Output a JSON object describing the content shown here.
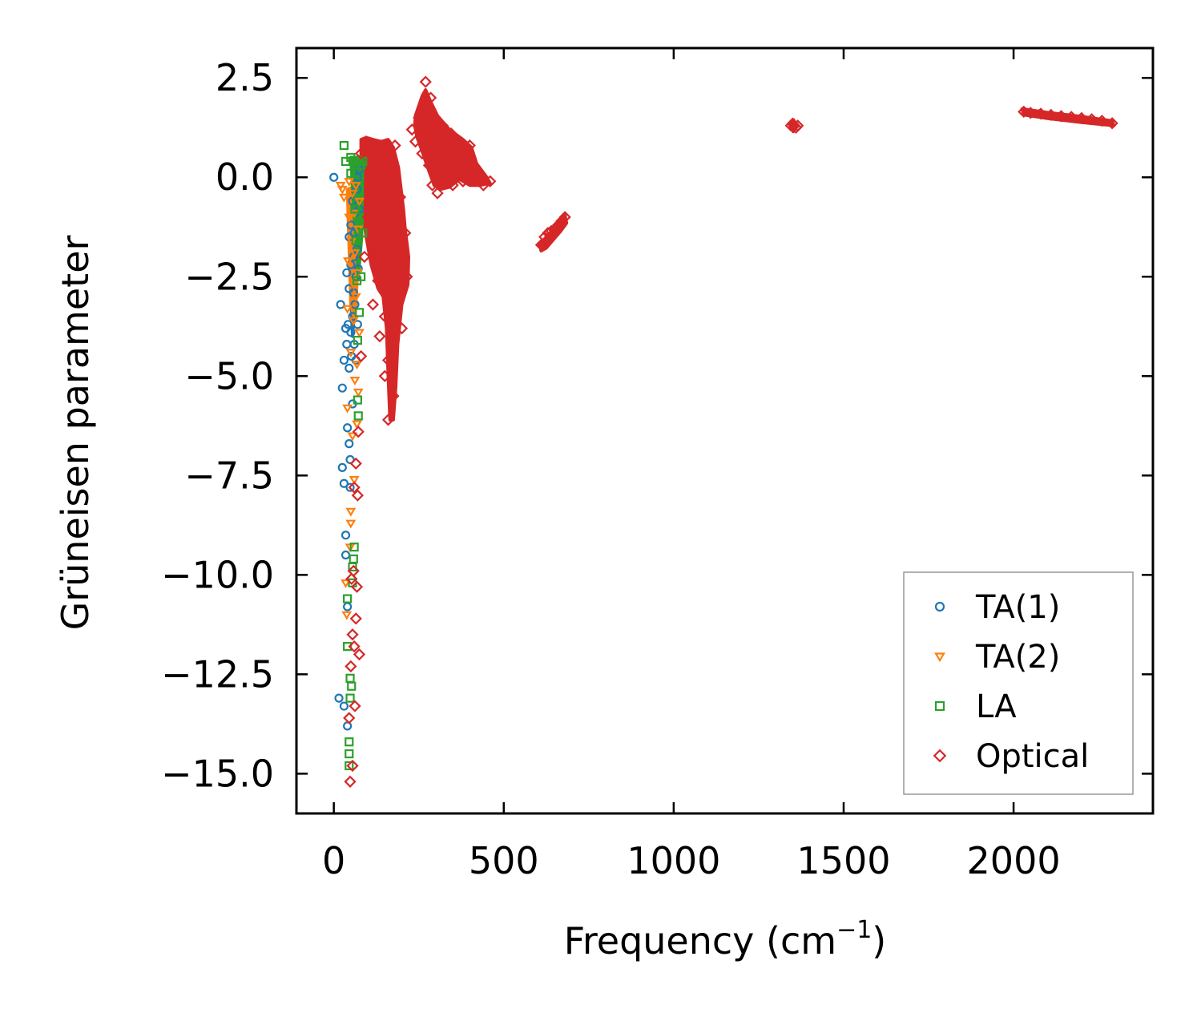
{
  "chart_data": {
    "type": "scatter",
    "title": "",
    "xlabel": "Frequency (cm",
    "xlabel_sup": "−1",
    "xlabel_end": ")",
    "ylabel": "Grüneisen parameter",
    "xlim": [
      -110,
      2410
    ],
    "ylim": [
      -16.0,
      3.25
    ],
    "x_ticks": [
      0,
      500,
      1000,
      1500,
      2000
    ],
    "x_tick_labels": [
      "0",
      "500",
      "1000",
      "1500",
      "2000"
    ],
    "y_ticks": [
      2.5,
      0.0,
      -2.5,
      -5.0,
      -7.5,
      -10.0,
      -12.5,
      -15.0
    ],
    "y_tick_labels": [
      "2.5",
      "0.0",
      "−2.5",
      "−5.0",
      "−7.5",
      "−10.0",
      "−12.5",
      "−15.0"
    ],
    "grid": false,
    "legend_position": "bottom-right",
    "series": [
      {
        "name": "TA(1)",
        "marker": "circle",
        "color": "#1f77b4",
        "points": [
          [
            0,
            0.0
          ],
          [
            15,
            -13.1
          ],
          [
            20,
            -3.2
          ],
          [
            25,
            -5.3
          ],
          [
            25,
            -7.3
          ],
          [
            30,
            -4.6
          ],
          [
            30,
            -7.7
          ],
          [
            30,
            -13.3
          ],
          [
            35,
            -9.0
          ],
          [
            35,
            -3.8
          ],
          [
            35,
            -9.5
          ],
          [
            38,
            -2.4
          ],
          [
            38,
            -4.2
          ],
          [
            40,
            -10.8
          ],
          [
            40,
            -13.8
          ],
          [
            40,
            -6.3
          ],
          [
            42,
            -3.7
          ],
          [
            45,
            -1.5
          ],
          [
            45,
            -2.8
          ],
          [
            45,
            -4.8
          ],
          [
            45,
            -6.7
          ],
          [
            48,
            -7.1
          ],
          [
            48,
            -7.8
          ],
          [
            50,
            -3.9
          ],
          [
            50,
            -1.2
          ],
          [
            50,
            -2.2
          ],
          [
            52,
            -4.5
          ],
          [
            55,
            -5.7
          ],
          [
            55,
            -3.5
          ],
          [
            55,
            -0.6
          ],
          [
            58,
            -2.9
          ],
          [
            58,
            -2.0
          ],
          [
            60,
            -4.2
          ],
          [
            60,
            -1.4
          ],
          [
            62,
            -3.2
          ],
          [
            62,
            -0.9
          ],
          [
            65,
            -2.5
          ],
          [
            65,
            -4.6
          ],
          [
            68,
            -1.8
          ],
          [
            68,
            -0.3
          ],
          [
            70,
            -3.7
          ],
          [
            70,
            0.0
          ],
          [
            72,
            -2.3
          ],
          [
            75,
            -0.8
          ],
          [
            75,
            0.2
          ]
        ]
      },
      {
        "name": "TA(2)",
        "marker": "triangle-down",
        "color": "#ff7f0e",
        "points": [
          [
            20,
            -0.2
          ],
          [
            25,
            -0.3
          ],
          [
            30,
            -0.5
          ],
          [
            35,
            -10.2
          ],
          [
            38,
            -11.0
          ],
          [
            40,
            -3.3
          ],
          [
            40,
            -5.8
          ],
          [
            42,
            -2.1
          ],
          [
            45,
            -0.1
          ],
          [
            45,
            -1.0
          ],
          [
            48,
            -9.3
          ],
          [
            50,
            -8.4
          ],
          [
            50,
            -8.7
          ],
          [
            50,
            -4.4
          ],
          [
            52,
            -1.6
          ],
          [
            55,
            -0.4
          ],
          [
            55,
            -6.5
          ],
          [
            58,
            -2.7
          ],
          [
            58,
            -3.6
          ],
          [
            60,
            -7.6
          ],
          [
            60,
            -0.9
          ],
          [
            62,
            -1.9
          ],
          [
            62,
            -5.1
          ],
          [
            65,
            -0.2
          ],
          [
            65,
            -3.0
          ],
          [
            68,
            -6.2
          ],
          [
            68,
            -4.7
          ],
          [
            70,
            -2.4
          ],
          [
            72,
            -1.3
          ],
          [
            72,
            -5.4
          ],
          [
            75,
            -0.6
          ],
          [
            75,
            -3.9
          ]
        ]
      },
      {
        "name": "LA",
        "marker": "square",
        "color": "#2ca02c",
        "points": [
          [
            30,
            0.8
          ],
          [
            35,
            0.4
          ],
          [
            40,
            -10.6
          ],
          [
            40,
            -11.8
          ],
          [
            45,
            -14.2
          ],
          [
            45,
            -14.5
          ],
          [
            45,
            -14.8
          ],
          [
            48,
            -12.6
          ],
          [
            48,
            -13.1
          ],
          [
            50,
            0.1
          ],
          [
            50,
            0.5
          ],
          [
            52,
            -12.8
          ],
          [
            55,
            -9.8
          ],
          [
            55,
            -10.2
          ],
          [
            58,
            -9.6
          ],
          [
            60,
            -9.3
          ],
          [
            60,
            0.3
          ],
          [
            62,
            -0.8
          ],
          [
            65,
            -1.6
          ],
          [
            65,
            0.4
          ],
          [
            68,
            -2.6
          ],
          [
            70,
            -4.1
          ],
          [
            70,
            -5.6
          ],
          [
            72,
            -6.0
          ],
          [
            75,
            -1.1
          ],
          [
            75,
            -3.4
          ],
          [
            80,
            -2.5
          ],
          [
            80,
            0.3
          ],
          [
            85,
            -1.4
          ],
          [
            85,
            0.4
          ]
        ]
      },
      {
        "name": "Optical",
        "marker": "diamond",
        "color": "#d62728",
        "points": [
          [
            45,
            -13.6
          ],
          [
            48,
            -15.2
          ],
          [
            50,
            -12.3
          ],
          [
            52,
            -10.1
          ],
          [
            55,
            -11.5
          ],
          [
            55,
            -14.8
          ],
          [
            58,
            -9.9
          ],
          [
            60,
            -11.8
          ],
          [
            60,
            -7.8
          ],
          [
            62,
            -13.3
          ],
          [
            65,
            -7.2
          ],
          [
            65,
            -11.1
          ],
          [
            68,
            -10.3
          ],
          [
            70,
            -8.0
          ],
          [
            72,
            -6.4
          ],
          [
            75,
            -12.0
          ],
          [
            80,
            -4.5
          ],
          [
            80,
            0.6
          ],
          [
            90,
            -2.0
          ],
          [
            95,
            0.9
          ],
          [
            100,
            -1.0
          ],
          [
            110,
            0.2
          ],
          [
            115,
            -3.2
          ],
          [
            120,
            -1.5
          ],
          [
            125,
            0.5
          ],
          [
            130,
            -2.6
          ],
          [
            135,
            -4.0
          ],
          [
            140,
            -1.1
          ],
          [
            145,
            0.1
          ],
          [
            150,
            -3.5
          ],
          [
            150,
            -5.0
          ],
          [
            155,
            -2.2
          ],
          [
            160,
            -6.1
          ],
          [
            160,
            -4.6
          ],
          [
            165,
            -1.8
          ],
          [
            170,
            -3.0
          ],
          [
            175,
            -5.5
          ],
          [
            180,
            0.8
          ],
          [
            185,
            -2.8
          ],
          [
            190,
            -1.2
          ],
          [
            195,
            -0.5
          ],
          [
            200,
            -3.8
          ],
          [
            205,
            -2.0
          ],
          [
            210,
            -1.4
          ],
          [
            215,
            -2.5
          ],
          [
            230,
            1.2
          ],
          [
            240,
            0.9
          ],
          [
            250,
            1.5
          ],
          [
            260,
            0.6
          ],
          [
            265,
            1.8
          ],
          [
            270,
            2.4
          ],
          [
            275,
            1.1
          ],
          [
            280,
            0.3
          ],
          [
            285,
            2.0
          ],
          [
            290,
            -0.2
          ],
          [
            300,
            1.4
          ],
          [
            305,
            -0.4
          ],
          [
            310,
            0.7
          ],
          [
            320,
            1.3
          ],
          [
            325,
            0.2
          ],
          [
            330,
            0.9
          ],
          [
            340,
            0.5
          ],
          [
            345,
            1.1
          ],
          [
            350,
            -0.2
          ],
          [
            360,
            0.8
          ],
          [
            370,
            0.4
          ],
          [
            380,
            -0.1
          ],
          [
            390,
            0.6
          ],
          [
            400,
            0.8
          ],
          [
            420,
            0.1
          ],
          [
            440,
            -0.2
          ],
          [
            460,
            -0.1
          ],
          [
            610,
            -1.7
          ],
          [
            620,
            -1.5
          ],
          [
            630,
            -1.4
          ],
          [
            640,
            -1.35
          ],
          [
            650,
            -1.3
          ],
          [
            660,
            -1.2
          ],
          [
            670,
            -1.1
          ],
          [
            680,
            -1.0
          ],
          [
            1345,
            1.3
          ],
          [
            1350,
            1.35
          ],
          [
            1355,
            1.3
          ],
          [
            1360,
            1.25
          ],
          [
            1365,
            1.3
          ],
          [
            2030,
            1.65
          ],
          [
            2050,
            1.62
          ],
          [
            2080,
            1.6
          ],
          [
            2110,
            1.57
          ],
          [
            2140,
            1.54
          ],
          [
            2170,
            1.52
          ],
          [
            2200,
            1.49
          ],
          [
            2230,
            1.46
          ],
          [
            2260,
            1.42
          ],
          [
            2290,
            1.36
          ]
        ]
      }
    ],
    "clusters": [
      {
        "series": "Optical",
        "polygon": [
          [
            80,
            0.95
          ],
          [
            95,
            1.0
          ],
          [
            115,
            0.95
          ],
          [
            140,
            0.9
          ],
          [
            160,
            0.95
          ],
          [
            175,
            0.75
          ],
          [
            190,
            0.25
          ],
          [
            205,
            -0.8
          ],
          [
            210,
            -1.3
          ],
          [
            220,
            -2.0
          ],
          [
            218,
            -2.7
          ],
          [
            200,
            -3.2
          ],
          [
            188,
            -4.2
          ],
          [
            182,
            -5.3
          ],
          [
            175,
            -6.1
          ],
          [
            165,
            -6.1
          ],
          [
            160,
            -5.0
          ],
          [
            155,
            -3.8
          ],
          [
            145,
            -3.0
          ],
          [
            130,
            -2.8
          ],
          [
            110,
            -2.2
          ],
          [
            95,
            -1.5
          ],
          [
            85,
            -0.8
          ],
          [
            80,
            0.2
          ]
        ]
      },
      {
        "series": "Optical",
        "polygon": [
          [
            240,
            1.55
          ],
          [
            260,
            2.05
          ],
          [
            270,
            2.2
          ],
          [
            285,
            1.9
          ],
          [
            305,
            1.55
          ],
          [
            340,
            1.2
          ],
          [
            380,
            0.95
          ],
          [
            405,
            0.75
          ],
          [
            420,
            0.35
          ],
          [
            450,
            0.0
          ],
          [
            460,
            -0.15
          ],
          [
            430,
            -0.2
          ],
          [
            400,
            -0.2
          ],
          [
            370,
            -0.05
          ],
          [
            340,
            -0.25
          ],
          [
            315,
            -0.3
          ],
          [
            295,
            -0.2
          ],
          [
            278,
            0.2
          ],
          [
            262,
            0.6
          ],
          [
            245,
            1.0
          ],
          [
            238,
            1.3
          ]
        ]
      },
      {
        "series": "Optical",
        "polygon": [
          [
            605,
            -1.7
          ],
          [
            625,
            -1.5
          ],
          [
            645,
            -1.3
          ],
          [
            665,
            -1.1
          ],
          [
            680,
            -0.95
          ],
          [
            685,
            -1.15
          ],
          [
            668,
            -1.35
          ],
          [
            648,
            -1.55
          ],
          [
            625,
            -1.78
          ],
          [
            610,
            -1.85
          ]
        ]
      },
      {
        "series": "Optical",
        "polygon": [
          [
            1342,
            1.3
          ],
          [
            1352,
            1.45
          ],
          [
            1362,
            1.3
          ],
          [
            1352,
            1.15
          ]
        ]
      },
      {
        "series": "Optical",
        "polygon": [
          [
            2025,
            1.72
          ],
          [
            2100,
            1.63
          ],
          [
            2200,
            1.53
          ],
          [
            2290,
            1.42
          ],
          [
            2295,
            1.3
          ],
          [
            2200,
            1.38
          ],
          [
            2100,
            1.48
          ],
          [
            2030,
            1.57
          ]
        ]
      },
      {
        "series": "TA(1)",
        "polygon": [
          [
            55,
            0.2
          ],
          [
            75,
            0.2
          ],
          [
            70,
            -1.5
          ],
          [
            62,
            -3.0
          ],
          [
            55,
            -4.0
          ],
          [
            50,
            -3.0
          ],
          [
            52,
            -1.5
          ]
        ]
      },
      {
        "series": "TA(2)",
        "polygon": [
          [
            40,
            -0.3
          ],
          [
            75,
            -0.2
          ],
          [
            72,
            -2.0
          ],
          [
            62,
            -3.6
          ],
          [
            50,
            -3.2
          ],
          [
            45,
            -1.8
          ]
        ]
      },
      {
        "series": "LA",
        "polygon": [
          [
            50,
            0.5
          ],
          [
            85,
            0.5
          ],
          [
            82,
            -1.5
          ],
          [
            72,
            -2.5
          ],
          [
            60,
            -1.0
          ]
        ]
      }
    ]
  }
}
